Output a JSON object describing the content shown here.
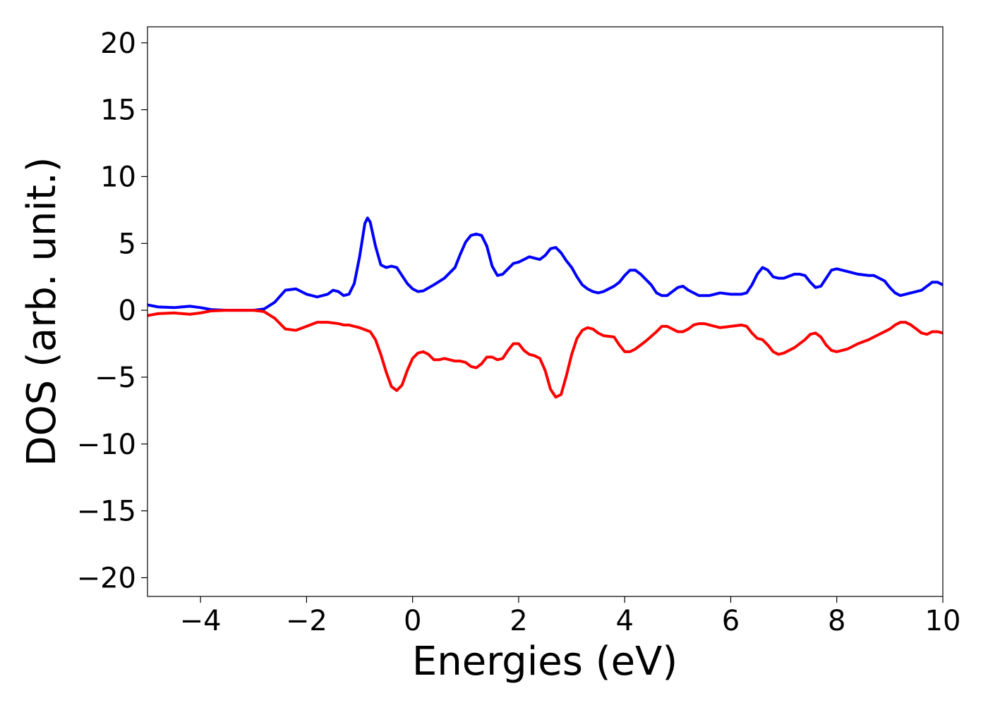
{
  "chart_data": {
    "type": "line",
    "xlabel": "Energies (eV)",
    "ylabel": "DOS (arb. unit.)",
    "xlim": [
      -5,
      10
    ],
    "ylim": [
      -21.4,
      21.2
    ],
    "xticks": [
      {
        "value": -4,
        "label": "−4"
      },
      {
        "value": -2,
        "label": "−2"
      },
      0,
      2,
      4,
      6,
      8,
      10
    ],
    "yticks": [
      {
        "value": -20,
        "label": "−20"
      },
      {
        "value": -15,
        "label": "−15"
      },
      {
        "value": -10,
        "label": "−10"
      },
      {
        "value": -5,
        "label": "−5"
      },
      0,
      5,
      10,
      15,
      20
    ],
    "grid": false,
    "series": [
      {
        "color": "#0000ff",
        "x": [
          -5,
          -4.8,
          -4.5,
          -4.2,
          -4,
          -3.8,
          -3.5,
          -3,
          -2.8,
          -2.6,
          -2.4,
          -2.2,
          -2,
          -1.8,
          -1.6,
          -1.5,
          -1.4,
          -1.3,
          -1.2,
          -1.1,
          -1.0,
          -0.9,
          -0.85,
          -0.8,
          -0.7,
          -0.6,
          -0.5,
          -0.4,
          -0.3,
          -0.2,
          -0.1,
          0,
          0.1,
          0.2,
          0.4,
          0.6,
          0.8,
          0.9,
          1.0,
          1.1,
          1.2,
          1.3,
          1.4,
          1.5,
          1.6,
          1.7,
          1.8,
          1.9,
          2.0,
          2.1,
          2.2,
          2.3,
          2.4,
          2.5,
          2.6,
          2.7,
          2.8,
          2.9,
          3.0,
          3.1,
          3.2,
          3.3,
          3.4,
          3.5,
          3.6,
          3.8,
          3.9,
          4.0,
          4.1,
          4.2,
          4.3,
          4.5,
          4.6,
          4.7,
          4.8,
          4.9,
          5.0,
          5.1,
          5.2,
          5.4,
          5.6,
          5.8,
          6.0,
          6.2,
          6.3,
          6.4,
          6.5,
          6.6,
          6.7,
          6.8,
          6.9,
          7.0,
          7.2,
          7.3,
          7.4,
          7.5,
          7.6,
          7.7,
          7.8,
          7.9,
          8.0,
          8.2,
          8.4,
          8.6,
          8.7,
          8.9,
          9.0,
          9.1,
          9.2,
          9.3,
          9.5,
          9.6,
          9.7,
          9.8,
          9.9,
          10.0
        ],
        "values": [
          0.4,
          0.25,
          0.2,
          0.3,
          0.2,
          0.05,
          0,
          0,
          0.1,
          0.6,
          1.5,
          1.6,
          1.2,
          1.0,
          1.2,
          1.5,
          1.4,
          1.1,
          1.2,
          2.0,
          4.0,
          6.5,
          6.9,
          6.6,
          4.8,
          3.4,
          3.2,
          3.3,
          3.2,
          2.6,
          2.0,
          1.6,
          1.4,
          1.45,
          1.9,
          2.4,
          3.2,
          4.2,
          5.1,
          5.6,
          5.7,
          5.6,
          4.8,
          3.3,
          2.6,
          2.7,
          3.1,
          3.5,
          3.6,
          3.8,
          4.0,
          3.9,
          3.8,
          4.1,
          4.6,
          4.7,
          4.3,
          3.7,
          3.2,
          2.5,
          1.9,
          1.6,
          1.4,
          1.3,
          1.4,
          1.8,
          2.1,
          2.6,
          3.0,
          3.0,
          2.7,
          1.9,
          1.3,
          1.1,
          1.1,
          1.4,
          1.7,
          1.8,
          1.5,
          1.1,
          1.1,
          1.3,
          1.2,
          1.2,
          1.3,
          1.9,
          2.7,
          3.2,
          3.0,
          2.5,
          2.4,
          2.4,
          2.7,
          2.7,
          2.6,
          2.1,
          1.7,
          1.8,
          2.4,
          3.0,
          3.1,
          2.9,
          2.7,
          2.6,
          2.6,
          2.2,
          1.7,
          1.3,
          1.1,
          1.2,
          1.4,
          1.5,
          1.8,
          2.1,
          2.1,
          1.9
        ]
      },
      {
        "color": "#ff0000",
        "x": [
          -5,
          -4.8,
          -4.5,
          -4.2,
          -4,
          -3.8,
          -3.5,
          -3,
          -2.8,
          -2.6,
          -2.4,
          -2.2,
          -2.0,
          -1.8,
          -1.6,
          -1.4,
          -1.3,
          -1.2,
          -1.0,
          -0.8,
          -0.7,
          -0.6,
          -0.5,
          -0.4,
          -0.3,
          -0.2,
          -0.1,
          0,
          0.1,
          0.2,
          0.3,
          0.4,
          0.5,
          0.6,
          0.7,
          0.8,
          0.9,
          1.0,
          1.1,
          1.2,
          1.3,
          1.4,
          1.5,
          1.6,
          1.7,
          1.8,
          1.9,
          2.0,
          2.1,
          2.2,
          2.3,
          2.4,
          2.5,
          2.6,
          2.7,
          2.8,
          2.9,
          3.0,
          3.1,
          3.2,
          3.3,
          3.4,
          3.5,
          3.6,
          3.8,
          3.9,
          4.0,
          4.1,
          4.2,
          4.4,
          4.6,
          4.7,
          4.8,
          4.9,
          5.0,
          5.1,
          5.2,
          5.3,
          5.4,
          5.5,
          5.6,
          5.8,
          6.0,
          6.2,
          6.3,
          6.4,
          6.5,
          6.6,
          6.7,
          6.8,
          6.9,
          7.0,
          7.2,
          7.4,
          7.5,
          7.6,
          7.7,
          7.8,
          7.9,
          8.0,
          8.2,
          8.4,
          8.6,
          8.8,
          9.0,
          9.1,
          9.2,
          9.3,
          9.4,
          9.6,
          9.7,
          9.8,
          9.9,
          10.0
        ],
        "values": [
          -0.4,
          -0.25,
          -0.2,
          -0.3,
          -0.2,
          -0.05,
          0,
          0,
          -0.1,
          -0.6,
          -1.4,
          -1.5,
          -1.2,
          -0.9,
          -0.9,
          -1.0,
          -1.1,
          -1.1,
          -1.3,
          -1.6,
          -2.2,
          -3.3,
          -4.6,
          -5.7,
          -6.0,
          -5.6,
          -4.5,
          -3.6,
          -3.2,
          -3.1,
          -3.3,
          -3.7,
          -3.7,
          -3.6,
          -3.7,
          -3.8,
          -3.8,
          -3.9,
          -4.2,
          -4.3,
          -4.0,
          -3.5,
          -3.5,
          -3.7,
          -3.6,
          -3.0,
          -2.5,
          -2.5,
          -3.0,
          -3.3,
          -3.4,
          -3.6,
          -4.5,
          -5.9,
          -6.5,
          -6.3,
          -4.9,
          -3.3,
          -2.1,
          -1.5,
          -1.3,
          -1.4,
          -1.7,
          -1.9,
          -2.0,
          -2.6,
          -3.1,
          -3.1,
          -2.9,
          -2.3,
          -1.6,
          -1.2,
          -1.2,
          -1.4,
          -1.6,
          -1.6,
          -1.4,
          -1.1,
          -1.0,
          -1.0,
          -1.1,
          -1.3,
          -1.2,
          -1.1,
          -1.2,
          -1.7,
          -2.1,
          -2.2,
          -2.6,
          -3.1,
          -3.3,
          -3.2,
          -2.8,
          -2.2,
          -1.8,
          -1.7,
          -2.0,
          -2.6,
          -3.0,
          -3.1,
          -2.9,
          -2.5,
          -2.2,
          -1.8,
          -1.4,
          -1.1,
          -0.9,
          -0.9,
          -1.1,
          -1.7,
          -1.8,
          -1.6,
          -1.6,
          -1.7
        ]
      }
    ]
  }
}
